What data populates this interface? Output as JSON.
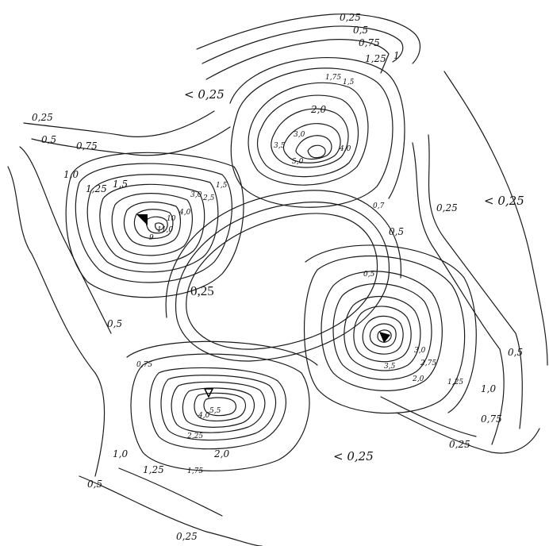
{
  "labels": {
    "top_0_25": "0,25",
    "top_0_5": "0,5",
    "top_0_75": "0,75",
    "top_1_25": "1,25",
    "top_1": "1",
    "lt_top": "< 0,25",
    "nw_1_75": "1,75",
    "nw_1_5": "1,5",
    "nw_2_0": "2,0",
    "ne_3_0": "3,0",
    "ne_4_0": "4,0",
    "ne_3_5": "3,5",
    "ne_5_0": "5,0",
    "ne_0_7": "0,7",
    "w_0_25": "0,25",
    "w_0_5": "0,5",
    "w_0_75": "0,75",
    "w_1_0": "1,0",
    "w_1_25": "1,25",
    "w_1_5": "1,5",
    "tl_1_5": "1,5",
    "tl_2_5": "2,5",
    "tl_3_0": "3,0",
    "tl_10": "10",
    "tl_9": "9",
    "tl_11_0": "11,0",
    "tl_4_0": "4,0",
    "r_0_25": "0,25",
    "r_lt": "< 0,25",
    "mid_0_5": "0,5",
    "mid_0_5b": "0,5",
    "center": "0,25",
    "left_0_5": "0,5",
    "br_3_0": "3,0",
    "br_2_75": "2,75",
    "br_2_0": "2,0",
    "br_1_25": "1,25",
    "br_3_5": "3,5",
    "br_1_0": "1,0",
    "br_0_5": "0,5",
    "br_0_75": "0,75",
    "br_0_25": "0,25",
    "bl_0_75": "0,75",
    "bl_4_0": "4,0",
    "bl_2_25": "2,25",
    "bl_2_0": "2,0",
    "bl_1_75": "1,75",
    "bl_1_25": "1,25",
    "bl_1_0": "1,0",
    "bl_0_5": "0,5",
    "bl_5_5": "5,5",
    "lt_bottom": "< 0,25",
    "bottom_0_25": "0,25"
  }
}
